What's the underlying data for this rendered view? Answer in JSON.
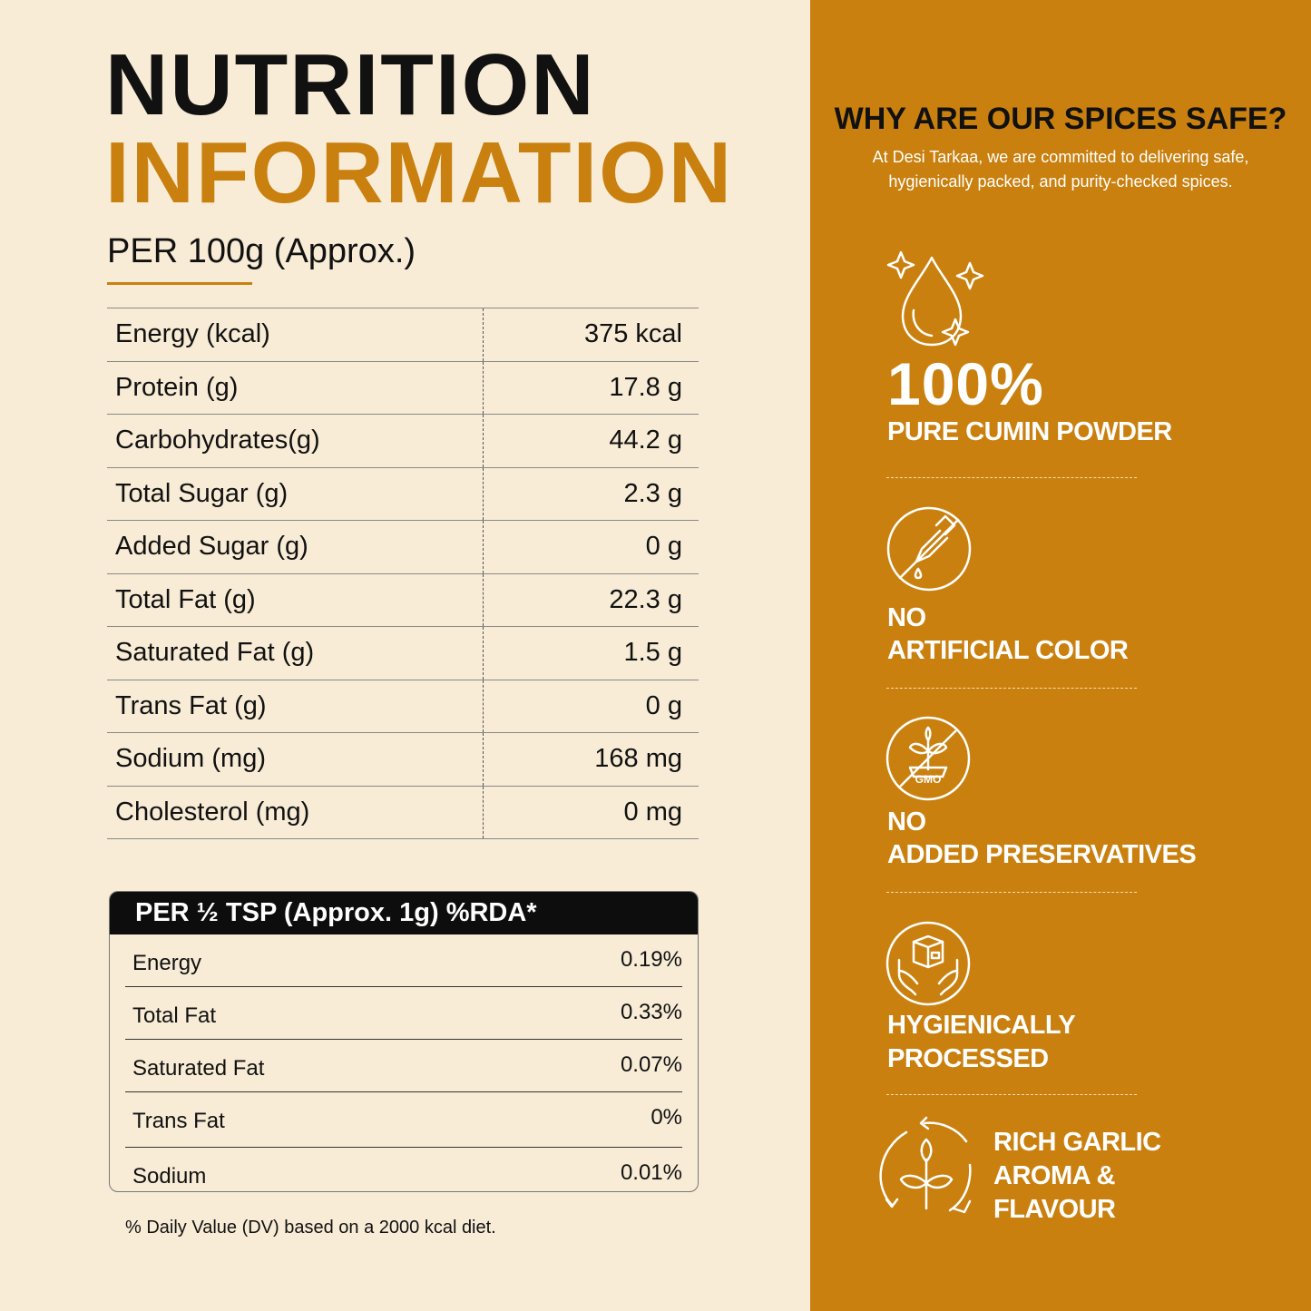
{
  "title": {
    "line1": "NUTRITION",
    "line2": "INFORMATION"
  },
  "per_100g_label": "PER 100g (Approx.)",
  "nutrition_rows": [
    {
      "label": "Energy (kcal)",
      "value": "375 kcal"
    },
    {
      "label": "Protein (g)",
      "value": "17.8 g"
    },
    {
      "label": "Carbohydrates(g)",
      "value": "44.2 g"
    },
    {
      "label": "Total Sugar (g)",
      "value": "2.3 g"
    },
    {
      "label": "Added Sugar (g)",
      "value": "0 g"
    },
    {
      "label": "Total Fat (g)",
      "value": "22.3 g"
    },
    {
      "label": "Saturated Fat (g)",
      "value": "1.5 g"
    },
    {
      "label": "Trans Fat (g)",
      "value": "0 g"
    },
    {
      "label": "Sodium (mg)",
      "value": "168 mg"
    },
    {
      "label": "Cholesterol (mg)",
      "value": "0 mg"
    }
  ],
  "rda": {
    "header": "PER ½ TSP (Approx. 1g) %RDA*",
    "rows": [
      {
        "label": "Energy",
        "value": "0.19%"
      },
      {
        "label": "Total Fat",
        "value": "0.33%"
      },
      {
        "label": "Saturated Fat",
        "value": "0.07%"
      },
      {
        "label": "Trans Fat",
        "value": "0%"
      },
      {
        "label": "Sodium",
        "value": "0.01%"
      }
    ]
  },
  "footnote": "% Daily Value (DV) based on a 2000 kcal diet.",
  "safety": {
    "title": "WHY ARE OUR SPICES SAFE?",
    "subtitle": "At Desi Tarkaa, we are committed to delivering safe, hygienically packed, and purity-checked spices.",
    "features": [
      {
        "icon": "sparkle-drop-icon",
        "headline": "100%",
        "line1": "PURE CUMIN POWDER"
      },
      {
        "icon": "no-dropper-icon",
        "line1": "NO",
        "line2": "ARTIFICIAL COLOR"
      },
      {
        "icon": "no-gmo-icon",
        "icon_text": "GMO",
        "line1": "NO",
        "line2": "ADDED PRESERVATIVES"
      },
      {
        "icon": "hands-box-icon",
        "line1": "HYGIENICALLY",
        "line2": "PROCESSED"
      },
      {
        "icon": "recycle-leaf-icon",
        "line1": "RICH GARLIC",
        "line2": "AROMA &",
        "line3": "FLAVOUR"
      }
    ]
  },
  "colors": {
    "background": "#f8ecd6",
    "accent": "#c9800f",
    "dark": "#111111",
    "white": "#ffffff"
  }
}
